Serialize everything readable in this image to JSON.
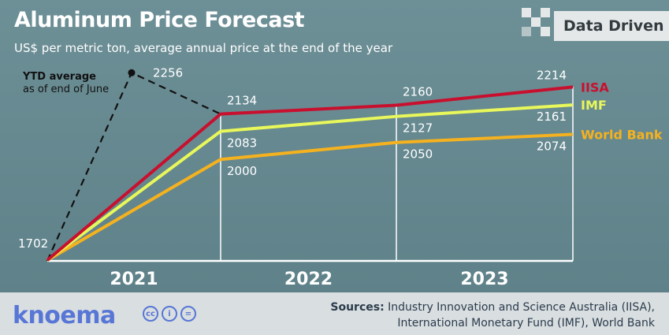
{
  "chart_data": {
    "type": "line",
    "title": "Aluminum Price Forecast",
    "subtitle": "US$ per metric ton, average annual price at the end of the year",
    "categories": [
      "2021",
      "2022",
      "2023"
    ],
    "x": [
      "start",
      "2021",
      "2022",
      "2023"
    ],
    "ylim": [
      1700,
      2280
    ],
    "series": [
      {
        "name": "IISA",
        "color": "#c8102e",
        "values": [
          1702,
          2134,
          2160,
          2214
        ],
        "labels": [
          "",
          "2134",
          "2160",
          "2214"
        ]
      },
      {
        "name": "IMF",
        "color": "#e8f75a",
        "values": [
          1702,
          2083,
          2127,
          2161
        ],
        "labels": [
          "",
          "2083",
          "2127",
          "2161"
        ]
      },
      {
        "name": "World Bank",
        "color": "#f5b21e",
        "values": [
          1702,
          2000,
          2050,
          2074
        ],
        "labels": [
          "",
          "2000",
          "2050",
          "2074"
        ]
      }
    ],
    "ytd": {
      "label_line1": "YTD average",
      "label_line2": "as of end of June",
      "value": 2256,
      "value_label": "2256",
      "x_position": "mid-2021"
    },
    "start_label": "1702",
    "legend": "right"
  },
  "brand": {
    "badge": "Data Driven",
    "logo": "knoema"
  },
  "footer": {
    "sources_label": "Sources:",
    "sources_line1": "Industry Innovation and Science Australia (IISA),",
    "sources_line2": "International Monetary Fund (IMF), World Bank"
  },
  "license_icons": [
    "cc",
    "i",
    "="
  ],
  "colors": {
    "background": "#6a8c93",
    "iisa": "#c8102e",
    "imf": "#e8f75a",
    "world_bank": "#f5b21e",
    "logo": "#5776d6"
  }
}
